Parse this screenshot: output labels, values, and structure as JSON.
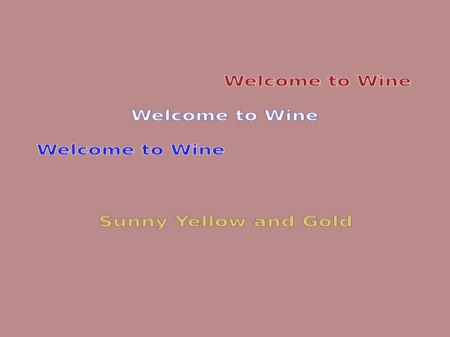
{
  "lines": [
    {
      "text": "Welcome to Wine"
    },
    {
      "text": "Welcome to Wine"
    },
    {
      "text": "Welcome to Wine"
    },
    {
      "text": "Sunny Yellow and Gold"
    }
  ]
}
